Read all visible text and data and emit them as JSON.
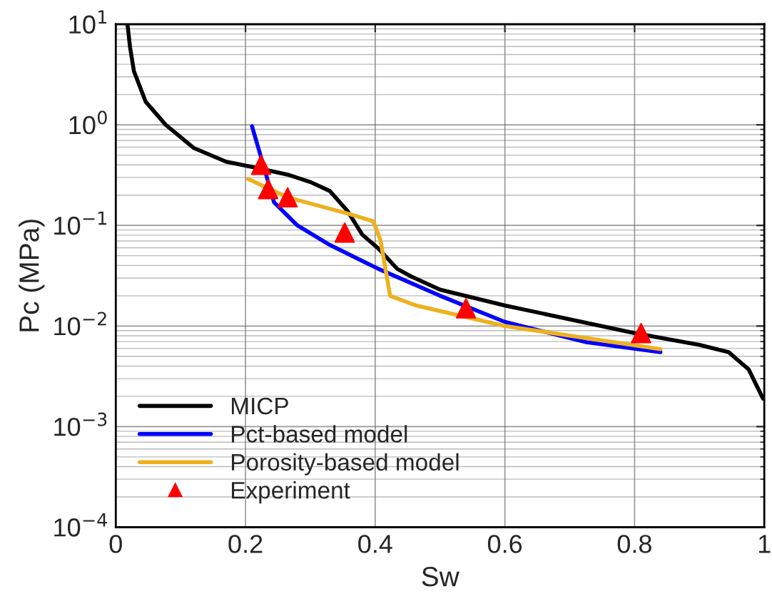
{
  "chart_data": {
    "type": "line",
    "xlabel": "Sw",
    "ylabel": "Pc (MPa)",
    "log": "y",
    "grid": true,
    "legend": "bottom left",
    "line_style": "solid",
    "xlim": [
      0,
      1
    ],
    "xticks": [
      0,
      0.2,
      0.4,
      0.6,
      0.8,
      1
    ],
    "ylim": [
      0.0001,
      10
    ],
    "yticks": [
      {
        "value": 0.0001,
        "label": "10$^{−4}$"
      },
      {
        "value": 0.001,
        "label": "10$^{−3}$"
      },
      {
        "value": 0.01,
        "label": "10$^{−2}$"
      },
      {
        "value": 0.1,
        "label": "10$^{−1}$"
      },
      {
        "value": 1,
        "label": "10$^{0}$"
      },
      {
        "value": 10,
        "label": "10$^{1}$"
      }
    ],
    "series": [
      {
        "name": "MICP",
        "color": "#000000",
        "x": [
          0.018,
          0.022,
          0.028,
          0.046,
          0.077,
          0.12,
          0.17,
          0.22,
          0.265,
          0.3,
          0.33,
          0.357,
          0.38,
          0.405,
          0.434,
          0.456,
          0.5,
          0.6,
          0.8,
          0.9,
          0.945,
          0.976,
          0.998
        ],
        "values": [
          10,
          5.9,
          3.4,
          1.7,
          1.0,
          0.59,
          0.43,
          0.37,
          0.32,
          0.27,
          0.22,
          0.14,
          0.081,
          0.059,
          0.037,
          0.031,
          0.023,
          0.016,
          0.0085,
          0.0065,
          0.0055,
          0.0037,
          0.0019
        ]
      },
      {
        "name": "Pct-based model",
        "color": "#0000ff",
        "x": [
          0.21,
          0.226,
          0.244,
          0.28,
          0.33,
          0.405,
          0.5,
          0.6,
          0.726,
          0.84
        ],
        "values": [
          0.97,
          0.43,
          0.17,
          0.1,
          0.064,
          0.037,
          0.02,
          0.011,
          0.0069,
          0.0055
        ]
      },
      {
        "name": "Porosity-based model",
        "color": "#edb120",
        "x": [
          0.204,
          0.265,
          0.36,
          0.397,
          0.408,
          0.423,
          0.463,
          0.6,
          0.84
        ],
        "values": [
          0.29,
          0.19,
          0.13,
          0.11,
          0.072,
          0.02,
          0.016,
          0.01,
          0.0059
        ]
      },
      {
        "name": "Experiment",
        "type": "scatter",
        "marker": "triangle",
        "color": "#ff0000",
        "x": [
          0.224,
          0.235,
          0.265,
          0.353,
          0.54,
          0.81
        ],
        "values": [
          0.4,
          0.23,
          0.19,
          0.085,
          0.015,
          0.0085
        ]
      }
    ]
  }
}
